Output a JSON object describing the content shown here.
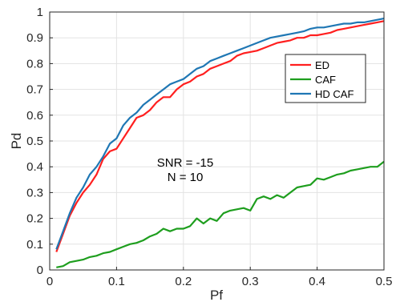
{
  "chart_data": {
    "type": "line",
    "xlabel": "Pf",
    "ylabel": "Pd",
    "xlim": [
      0,
      0.5
    ],
    "ylim": [
      0,
      1
    ],
    "grid": true,
    "legend_position": "top-right",
    "x_ticks": [
      "0",
      "0.1",
      "0.2",
      "0.3",
      "0.4",
      "0.5"
    ],
    "y_ticks": [
      "0",
      "0.1",
      "0.2",
      "0.3",
      "0.4",
      "0.5",
      "0.6",
      "0.7",
      "0.8",
      "0.9",
      "1"
    ],
    "annotations": [
      "SNR = -15",
      "N = 10"
    ],
    "x": [
      0.01,
      0.02,
      0.03,
      0.04,
      0.05,
      0.06,
      0.07,
      0.08,
      0.09,
      0.1,
      0.11,
      0.12,
      0.13,
      0.14,
      0.15,
      0.16,
      0.17,
      0.18,
      0.19,
      0.2,
      0.21,
      0.22,
      0.23,
      0.24,
      0.25,
      0.26,
      0.27,
      0.28,
      0.29,
      0.3,
      0.31,
      0.32,
      0.33,
      0.34,
      0.35,
      0.36,
      0.37,
      0.38,
      0.39,
      0.4,
      0.41,
      0.42,
      0.43,
      0.44,
      0.45,
      0.46,
      0.47,
      0.48,
      0.49,
      0.5
    ],
    "series": [
      {
        "name": "ED",
        "color": "#ff1f1f",
        "values": [
          0.07,
          0.14,
          0.21,
          0.26,
          0.3,
          0.33,
          0.37,
          0.43,
          0.46,
          0.47,
          0.51,
          0.55,
          0.59,
          0.6,
          0.62,
          0.65,
          0.67,
          0.67,
          0.7,
          0.72,
          0.73,
          0.75,
          0.76,
          0.78,
          0.79,
          0.8,
          0.81,
          0.83,
          0.84,
          0.845,
          0.85,
          0.86,
          0.87,
          0.88,
          0.885,
          0.89,
          0.9,
          0.9,
          0.91,
          0.91,
          0.915,
          0.92,
          0.93,
          0.935,
          0.94,
          0.945,
          0.95,
          0.955,
          0.96,
          0.965
        ]
      },
      {
        "name": "CAF",
        "color": "#1e9e1e",
        "values": [
          0.01,
          0.015,
          0.03,
          0.035,
          0.04,
          0.05,
          0.055,
          0.065,
          0.07,
          0.08,
          0.09,
          0.1,
          0.105,
          0.115,
          0.13,
          0.14,
          0.16,
          0.15,
          0.16,
          0.16,
          0.17,
          0.2,
          0.18,
          0.2,
          0.19,
          0.22,
          0.23,
          0.235,
          0.24,
          0.23,
          0.275,
          0.285,
          0.275,
          0.29,
          0.28,
          0.3,
          0.32,
          0.325,
          0.33,
          0.355,
          0.35,
          0.36,
          0.37,
          0.375,
          0.385,
          0.39,
          0.395,
          0.4,
          0.4,
          0.42
        ]
      },
      {
        "name": "HD CAF",
        "color": "#1f77b4",
        "values": [
          0.08,
          0.15,
          0.22,
          0.28,
          0.32,
          0.37,
          0.4,
          0.44,
          0.49,
          0.51,
          0.56,
          0.59,
          0.61,
          0.64,
          0.66,
          0.68,
          0.7,
          0.72,
          0.73,
          0.74,
          0.76,
          0.78,
          0.79,
          0.81,
          0.82,
          0.83,
          0.84,
          0.85,
          0.86,
          0.87,
          0.88,
          0.89,
          0.9,
          0.905,
          0.91,
          0.915,
          0.92,
          0.925,
          0.935,
          0.94,
          0.94,
          0.945,
          0.95,
          0.955,
          0.955,
          0.96,
          0.96,
          0.965,
          0.97,
          0.975
        ]
      }
    ]
  }
}
